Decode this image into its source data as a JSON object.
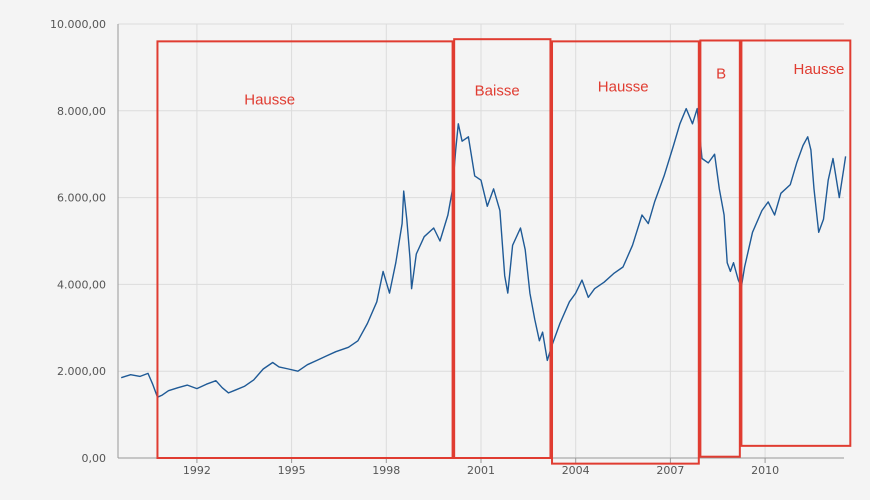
{
  "chart_data": {
    "type": "line",
    "title": "",
    "xlabel": "",
    "ylabel": "",
    "xlim": [
      1989.5,
      2012.5
    ],
    "ylim": [
      0,
      10000
    ],
    "grid": true,
    "y_ticks": [
      {
        "value": 0,
        "label": "0,00"
      },
      {
        "value": 2000,
        "label": "2.000,00"
      },
      {
        "value": 4000,
        "label": "4.000,00"
      },
      {
        "value": 6000,
        "label": "6.000,00"
      },
      {
        "value": 8000,
        "label": "8.000,00"
      },
      {
        "value": 10000,
        "label": "10.000,00"
      }
    ],
    "x_ticks": [
      {
        "value": 1992,
        "label": "1992"
      },
      {
        "value": 1995,
        "label": "1995"
      },
      {
        "value": 1998,
        "label": "1998"
      },
      {
        "value": 2001,
        "label": "2001"
      },
      {
        "value": 2004,
        "label": "2004"
      },
      {
        "value": 2007,
        "label": "2007"
      },
      {
        "value": 2010,
        "label": "2010"
      }
    ],
    "series": [
      {
        "color": "#1f5a96",
        "points": [
          [
            1989.6,
            1850
          ],
          [
            1989.9,
            1920
          ],
          [
            1990.2,
            1880
          ],
          [
            1990.45,
            1950
          ],
          [
            1990.6,
            1700
          ],
          [
            1990.75,
            1400
          ],
          [
            1990.9,
            1450
          ],
          [
            1991.1,
            1550
          ],
          [
            1991.4,
            1620
          ],
          [
            1991.7,
            1680
          ],
          [
            1992.0,
            1600
          ],
          [
            1992.3,
            1700
          ],
          [
            1992.6,
            1780
          ],
          [
            1992.8,
            1620
          ],
          [
            1993.0,
            1500
          ],
          [
            1993.2,
            1560
          ],
          [
            1993.5,
            1650
          ],
          [
            1993.8,
            1800
          ],
          [
            1994.1,
            2050
          ],
          [
            1994.4,
            2200
          ],
          [
            1994.6,
            2100
          ],
          [
            1994.9,
            2050
          ],
          [
            1995.2,
            2000
          ],
          [
            1995.5,
            2150
          ],
          [
            1995.8,
            2250
          ],
          [
            1996.1,
            2350
          ],
          [
            1996.4,
            2450
          ],
          [
            1996.8,
            2550
          ],
          [
            1997.1,
            2700
          ],
          [
            1997.4,
            3100
          ],
          [
            1997.7,
            3600
          ],
          [
            1997.9,
            4300
          ],
          [
            1998.1,
            3800
          ],
          [
            1998.3,
            4500
          ],
          [
            1998.5,
            5400
          ],
          [
            1998.55,
            6150
          ],
          [
            1998.65,
            5500
          ],
          [
            1998.75,
            4600
          ],
          [
            1998.8,
            3900
          ],
          [
            1998.95,
            4700
          ],
          [
            1999.2,
            5100
          ],
          [
            1999.5,
            5300
          ],
          [
            1999.7,
            5000
          ],
          [
            1999.95,
            5600
          ],
          [
            2000.1,
            6200
          ],
          [
            2000.2,
            7100
          ],
          [
            2000.28,
            7700
          ],
          [
            2000.4,
            7300
          ],
          [
            2000.6,
            7400
          ],
          [
            2000.8,
            6500
          ],
          [
            2001.0,
            6400
          ],
          [
            2001.2,
            5800
          ],
          [
            2001.4,
            6200
          ],
          [
            2001.6,
            5700
          ],
          [
            2001.75,
            4200
          ],
          [
            2001.85,
            3800
          ],
          [
            2002.0,
            4900
          ],
          [
            2002.25,
            5300
          ],
          [
            2002.4,
            4800
          ],
          [
            2002.55,
            3800
          ],
          [
            2002.7,
            3200
          ],
          [
            2002.85,
            2700
          ],
          [
            2002.95,
            2900
          ],
          [
            2003.1,
            2250
          ],
          [
            2003.25,
            2600
          ],
          [
            2003.5,
            3100
          ],
          [
            2003.8,
            3600
          ],
          [
            2004.0,
            3800
          ],
          [
            2004.2,
            4100
          ],
          [
            2004.4,
            3700
          ],
          [
            2004.6,
            3900
          ],
          [
            2004.9,
            4050
          ],
          [
            2005.2,
            4250
          ],
          [
            2005.5,
            4400
          ],
          [
            2005.8,
            4900
          ],
          [
            2006.1,
            5600
          ],
          [
            2006.3,
            5400
          ],
          [
            2006.5,
            5900
          ],
          [
            2006.8,
            6500
          ],
          [
            2007.1,
            7200
          ],
          [
            2007.3,
            7700
          ],
          [
            2007.5,
            8050
          ],
          [
            2007.7,
            7700
          ],
          [
            2007.85,
            8050
          ],
          [
            2008.0,
            6900
          ],
          [
            2008.2,
            6800
          ],
          [
            2008.4,
            7000
          ],
          [
            2008.55,
            6200
          ],
          [
            2008.7,
            5600
          ],
          [
            2008.8,
            4500
          ],
          [
            2008.9,
            4300
          ],
          [
            2009.0,
            4500
          ],
          [
            2009.15,
            4100
          ],
          [
            2009.25,
            3950
          ],
          [
            2009.35,
            4400
          ],
          [
            2009.6,
            5200
          ],
          [
            2009.9,
            5700
          ],
          [
            2010.1,
            5900
          ],
          [
            2010.3,
            5600
          ],
          [
            2010.5,
            6100
          ],
          [
            2010.8,
            6300
          ],
          [
            2011.0,
            6800
          ],
          [
            2011.2,
            7200
          ],
          [
            2011.35,
            7400
          ],
          [
            2011.45,
            7100
          ],
          [
            2011.55,
            6200
          ],
          [
            2011.7,
            5200
          ],
          [
            2011.85,
            5500
          ],
          [
            2012.0,
            6400
          ],
          [
            2012.15,
            6900
          ],
          [
            2012.35,
            6000
          ],
          [
            2012.5,
            6700
          ],
          [
            2012.55,
            6950
          ]
        ]
      }
    ],
    "annotations": [
      {
        "label": "Hausse",
        "x_start": 1990.75,
        "x_end": 2000.1,
        "y_bottom": 0,
        "y_top": 9600,
        "label_x": 1993.5,
        "label_y": 8150
      },
      {
        "label": "Baisse",
        "x_start": 2000.15,
        "x_end": 2003.2,
        "y_bottom": 0,
        "y_top": 9650,
        "label_x": 2000.8,
        "label_y": 8350
      },
      {
        "label": "Hausse",
        "x_start": 2003.25,
        "x_end": 2007.9,
        "y_bottom": -130,
        "y_top": 9600,
        "label_x": 2004.7,
        "label_y": 8450
      },
      {
        "label": "B",
        "x_start": 2007.95,
        "x_end": 2009.2,
        "y_bottom": 30,
        "y_top": 9620,
        "label_x": 2008.45,
        "label_y": 8750
      },
      {
        "label": "Hausse",
        "x_start": 2009.25,
        "x_end": 2012.7,
        "y_bottom": 280,
        "y_top": 9620,
        "label_x": 2010.9,
        "label_y": 8850
      }
    ],
    "annotation_color": "#e03c31"
  }
}
